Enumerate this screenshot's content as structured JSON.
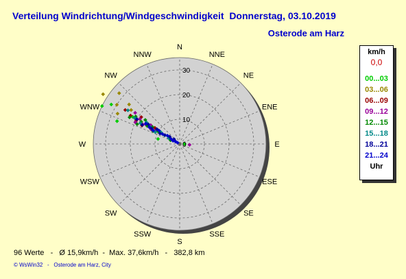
{
  "title": "Verteilung Windrichtung/Windgeschwindigkeit  Donnerstag, 03.10.2019",
  "location": "Osterode am Harz",
  "legend": {
    "unit": "km/h",
    "max_value": "0,0",
    "footer": "Uhr",
    "items": [
      {
        "label": "00...03",
        "color": "#00cc00"
      },
      {
        "label": "03...06",
        "color": "#998800"
      },
      {
        "label": "06...09",
        "color": "#990000"
      },
      {
        "label": "09...12",
        "color": "#990099"
      },
      {
        "label": "12...15",
        "color": "#008800"
      },
      {
        "label": "15...18",
        "color": "#008888"
      },
      {
        "label": "18...21",
        "color": "#000099"
      },
      {
        "label": "21...24",
        "color": "#0000cc"
      }
    ]
  },
  "footer": "96 Werte   -   Ø 15,9km/h  -  Max. 37,6km/h   -   382,8 km",
  "copyright": "© WsWin32   -   Osterode am Harz, City",
  "chart_data": {
    "type": "scatter",
    "coordinate_system": "polar",
    "directions": [
      "N",
      "NNE",
      "NE",
      "ENE",
      "E",
      "ESE",
      "SE",
      "SSE",
      "S",
      "SSW",
      "SW",
      "WSW",
      "W",
      "WNW",
      "NW",
      "NNW"
    ],
    "radial_ticks": [
      0,
      10,
      20,
      30
    ],
    "radial_max": 35,
    "grid": true,
    "series": [
      {
        "name": "00...03",
        "color": "#00cc00",
        "points": [
          [
            296,
            35
          ],
          [
            300,
            32
          ],
          [
            290,
            27
          ],
          [
            300,
            22
          ],
          [
            283,
            9
          ],
          [
            90,
            2
          ]
        ]
      },
      {
        "name": "03...06",
        "color": "#998800",
        "points": [
          [
            303,
            37
          ],
          [
            310,
            32
          ],
          [
            302,
            30
          ],
          [
            296,
            28
          ],
          [
            308,
            26
          ],
          [
            305,
            24
          ]
        ]
      },
      {
        "name": "06...09",
        "color": "#990000",
        "points": [
          [
            302,
            26
          ],
          [
            300,
            23
          ],
          [
            298,
            20
          ],
          [
            305,
            19
          ],
          [
            296,
            17
          ],
          [
            300,
            15
          ],
          [
            303,
            12
          ]
        ]
      },
      {
        "name": "09...12",
        "color": "#990099",
        "points": [
          [
            305,
            22
          ],
          [
            300,
            21
          ],
          [
            296,
            20
          ],
          [
            302,
            19
          ],
          [
            298,
            17
          ],
          [
            300,
            16
          ],
          [
            303,
            14
          ],
          [
            297,
            13
          ],
          [
            300,
            11
          ],
          [
            95,
            4
          ]
        ]
      },
      {
        "name": "12...15",
        "color": "#008800",
        "points": [
          [
            298,
            23
          ],
          [
            302,
            21
          ],
          [
            295,
            19
          ],
          [
            300,
            18
          ],
          [
            305,
            17
          ],
          [
            299,
            15
          ],
          [
            302,
            13
          ],
          [
            296,
            12
          ],
          [
            300,
            10
          ],
          [
            292,
            4
          ]
        ]
      },
      {
        "name": "15...18",
        "color": "#008888",
        "points": [
          [
            303,
            25
          ],
          [
            300,
            21
          ],
          [
            298,
            18
          ],
          [
            303,
            16
          ],
          [
            300,
            14
          ],
          [
            296,
            11
          ],
          [
            302,
            9
          ],
          [
            300,
            7
          ],
          [
            298,
            5
          ]
        ]
      },
      {
        "name": "18...21",
        "color": "#000099",
        "points": [
          [
            300,
            20
          ],
          [
            297,
            17
          ],
          [
            302,
            15
          ],
          [
            299,
            13
          ],
          [
            303,
            11
          ],
          [
            298,
            9
          ],
          [
            301,
            7
          ],
          [
            306,
            5
          ],
          [
            310,
            3
          ]
        ]
      },
      {
        "name": "21...24",
        "color": "#0000cc",
        "points": [
          [
            301,
            16
          ],
          [
            299,
            14
          ],
          [
            297,
            12
          ],
          [
            303,
            10
          ],
          [
            300,
            8
          ],
          [
            304,
            6
          ],
          [
            300,
            4
          ],
          [
            296,
            3
          ],
          [
            300,
            2
          ],
          [
            300,
            1
          ]
        ]
      }
    ]
  }
}
